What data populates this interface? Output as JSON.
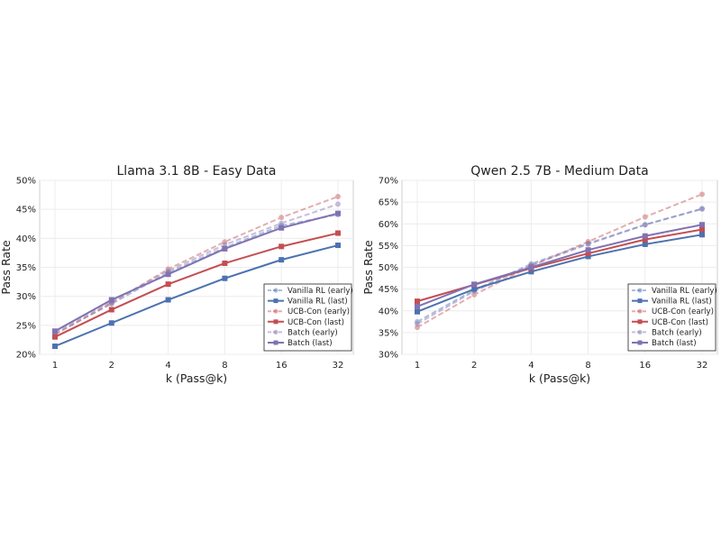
{
  "chart_data": [
    {
      "type": "line",
      "title": "Llama 3.1 8B - Easy Data",
      "xlabel": "k (Pass@k)",
      "ylabel": "Pass Rate",
      "x": [
        1,
        2,
        4,
        8,
        16,
        32
      ],
      "x_scale": "log2",
      "ylim": [
        20,
        50
      ],
      "yticks": [
        "20%",
        "25%",
        "30%",
        "35%",
        "40%",
        "45%",
        "50%"
      ],
      "ytick_values": [
        20,
        25,
        30,
        35,
        40,
        45,
        50
      ],
      "xticks": [
        "1",
        "2",
        "4",
        "8",
        "16",
        "32"
      ],
      "grid": true,
      "legend_position": "lower-right",
      "series": [
        {
          "name": "Vanilla RL (early)",
          "color": "#4c72b0",
          "style": "dashed",
          "marker": "circle",
          "faded": true,
          "values": [
            23.6,
            28.7,
            34.1,
            38.4,
            42.2,
            44.1
          ]
        },
        {
          "name": "Vanilla RL (last)",
          "color": "#4c72b0",
          "style": "solid",
          "marker": "square",
          "faded": false,
          "values": [
            21.4,
            25.4,
            29.4,
            33.1,
            36.3,
            38.8
          ]
        },
        {
          "name": "UCB-Con (early)",
          "color": "#c44e52",
          "style": "dashed",
          "marker": "circle",
          "faded": true,
          "values": [
            23.4,
            28.9,
            34.7,
            39.4,
            43.6,
            47.2
          ]
        },
        {
          "name": "UCB-Con (last)",
          "color": "#c44e52",
          "style": "solid",
          "marker": "square",
          "faded": false,
          "values": [
            23.0,
            27.7,
            32.1,
            35.7,
            38.6,
            40.9
          ]
        },
        {
          "name": "Batch (early)",
          "color": "#8172b2",
          "style": "dashed",
          "marker": "circle",
          "faded": true,
          "values": [
            23.9,
            29.1,
            34.4,
            38.9,
            42.6,
            45.9
          ]
        },
        {
          "name": "Batch (last)",
          "color": "#8172b2",
          "style": "solid",
          "marker": "square",
          "faded": false,
          "values": [
            24.0,
            29.4,
            33.8,
            38.2,
            41.8,
            44.3
          ]
        }
      ]
    },
    {
      "type": "line",
      "title": "Qwen 2.5 7B - Medium Data",
      "xlabel": "k (Pass@k)",
      "ylabel": "Pass Rate",
      "x": [
        1,
        2,
        4,
        8,
        16,
        32
      ],
      "x_scale": "log2",
      "ylim": [
        30,
        70
      ],
      "yticks": [
        "30%",
        "35%",
        "40%",
        "45%",
        "50%",
        "55%",
        "60%",
        "65%",
        "70%"
      ],
      "ytick_values": [
        30,
        35,
        40,
        45,
        50,
        55,
        60,
        65,
        70
      ],
      "xticks": [
        "1",
        "2",
        "4",
        "8",
        "16",
        "32"
      ],
      "grid": true,
      "legend_position": "lower-right",
      "series": [
        {
          "name": "Vanilla RL (early)",
          "color": "#4c72b0",
          "style": "dashed",
          "marker": "circle",
          "faded": true,
          "values": [
            37.5,
            44.8,
            50.8,
            55.5,
            59.8,
            63.5
          ]
        },
        {
          "name": "Vanilla RL (last)",
          "color": "#4c72b0",
          "style": "solid",
          "marker": "square",
          "faded": false,
          "values": [
            39.8,
            45.0,
            49.0,
            52.5,
            55.3,
            57.5
          ]
        },
        {
          "name": "UCB-Con (early)",
          "color": "#c44e52",
          "style": "dashed",
          "marker": "circle",
          "faded": true,
          "values": [
            36.2,
            43.7,
            50.3,
            55.9,
            61.6,
            66.8
          ]
        },
        {
          "name": "UCB-Con (last)",
          "color": "#c44e52",
          "style": "solid",
          "marker": "square",
          "faded": false,
          "values": [
            42.2,
            46.0,
            49.8,
            53.2,
            56.4,
            58.7
          ]
        },
        {
          "name": "Batch (early)",
          "color": "#8172b2",
          "style": "dashed",
          "marker": "circle",
          "faded": true,
          "values": [
            37.0,
            44.5,
            50.5,
            55.3,
            59.8,
            63.4
          ]
        },
        {
          "name": "Batch (last)",
          "color": "#8172b2",
          "style": "solid",
          "marker": "square",
          "faded": false,
          "values": [
            41.0,
            46.1,
            50.0,
            54.0,
            57.2,
            59.8
          ]
        }
      ]
    }
  ]
}
